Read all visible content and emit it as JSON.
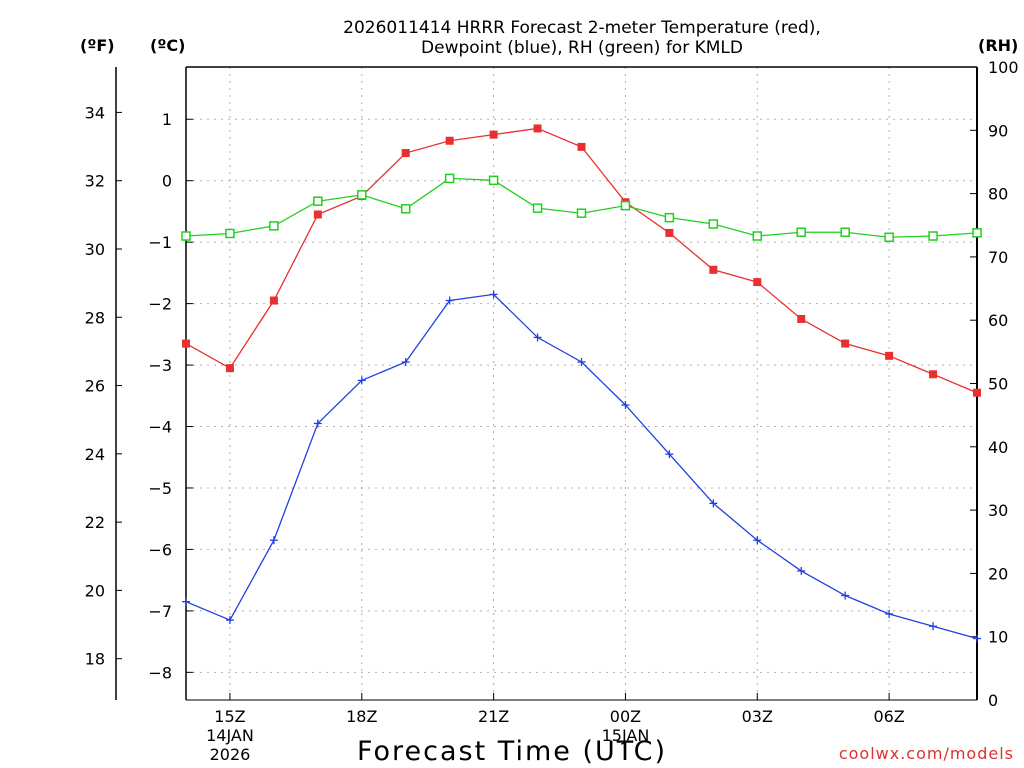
{
  "chart_data": {
    "type": "line",
    "title_line1": "2026011414 HRRR Forecast 2-meter Temperature (red),",
    "title_line2": "Dewpoint (blue), RH (green) for KMLD",
    "units": {
      "fahrenheit": "(ºF)",
      "celsius": "(ºC)",
      "rh": "(RH)"
    },
    "xlabel": "Forecast Time (UTC)",
    "credit": "coolwx.com/models",
    "x_hours": [
      14,
      15,
      16,
      17,
      18,
      19,
      20,
      21,
      22,
      23,
      24,
      25,
      26,
      27,
      28,
      29,
      30,
      31,
      32
    ],
    "x_range": [
      14,
      32
    ],
    "x_ticks": [
      {
        "hour": 15,
        "label": "15Z",
        "sub1": "14JAN",
        "sub2": "2026"
      },
      {
        "hour": 18,
        "label": "18Z"
      },
      {
        "hour": 21,
        "label": "21Z"
      },
      {
        "hour": 24,
        "label": "00Z",
        "sub1": "15JAN"
      },
      {
        "hour": 27,
        "label": "03Z"
      },
      {
        "hour": 30,
        "label": "06Z"
      }
    ],
    "celsius_axis": {
      "range": [
        -8.45,
        1.85
      ],
      "ticks": [
        1,
        0,
        -1,
        -2,
        -3,
        -4,
        -5,
        -6,
        -7,
        -8
      ]
    },
    "fahrenheit_axis": {
      "ticks": [
        34,
        32,
        30,
        28,
        26,
        24,
        22,
        20,
        18
      ]
    },
    "rh_axis": {
      "range": [
        0,
        100
      ],
      "ticks": [
        100,
        90,
        80,
        70,
        60,
        50,
        40,
        30,
        20,
        10,
        0
      ]
    },
    "series": [
      {
        "name": "Temperature",
        "color": "#e83030",
        "marker": "filled-square",
        "values_c": [
          -2.65,
          -3.05,
          -1.95,
          -0.55,
          -0.25,
          0.45,
          0.65,
          0.75,
          0.85,
          0.55,
          -0.35,
          -0.85,
          -1.45,
          -1.65,
          -2.25,
          -2.65,
          -2.85,
          -3.15,
          -3.45
        ]
      },
      {
        "name": "Dewpoint",
        "color": "#2040e0",
        "marker": "plus",
        "values_c": [
          -6.85,
          -7.15,
          -5.85,
          -3.95,
          -3.25,
          -2.95,
          -1.95,
          -1.85,
          -2.55,
          -2.95,
          -3.65,
          -4.45,
          -5.25,
          -5.85,
          -6.35,
          -6.75,
          -7.05,
          -7.25,
          -7.45
        ]
      },
      {
        "name": "RH",
        "color": "#20d020",
        "marker": "open-square",
        "values_rh": [
          73.3,
          73.7,
          74.9,
          78.8,
          79.8,
          77.6,
          82.4,
          82.1,
          77.7,
          76.9,
          78.1,
          76.2,
          75.2,
          73.3,
          73.9,
          73.9,
          73.1,
          73.3,
          73.8
        ]
      }
    ]
  }
}
